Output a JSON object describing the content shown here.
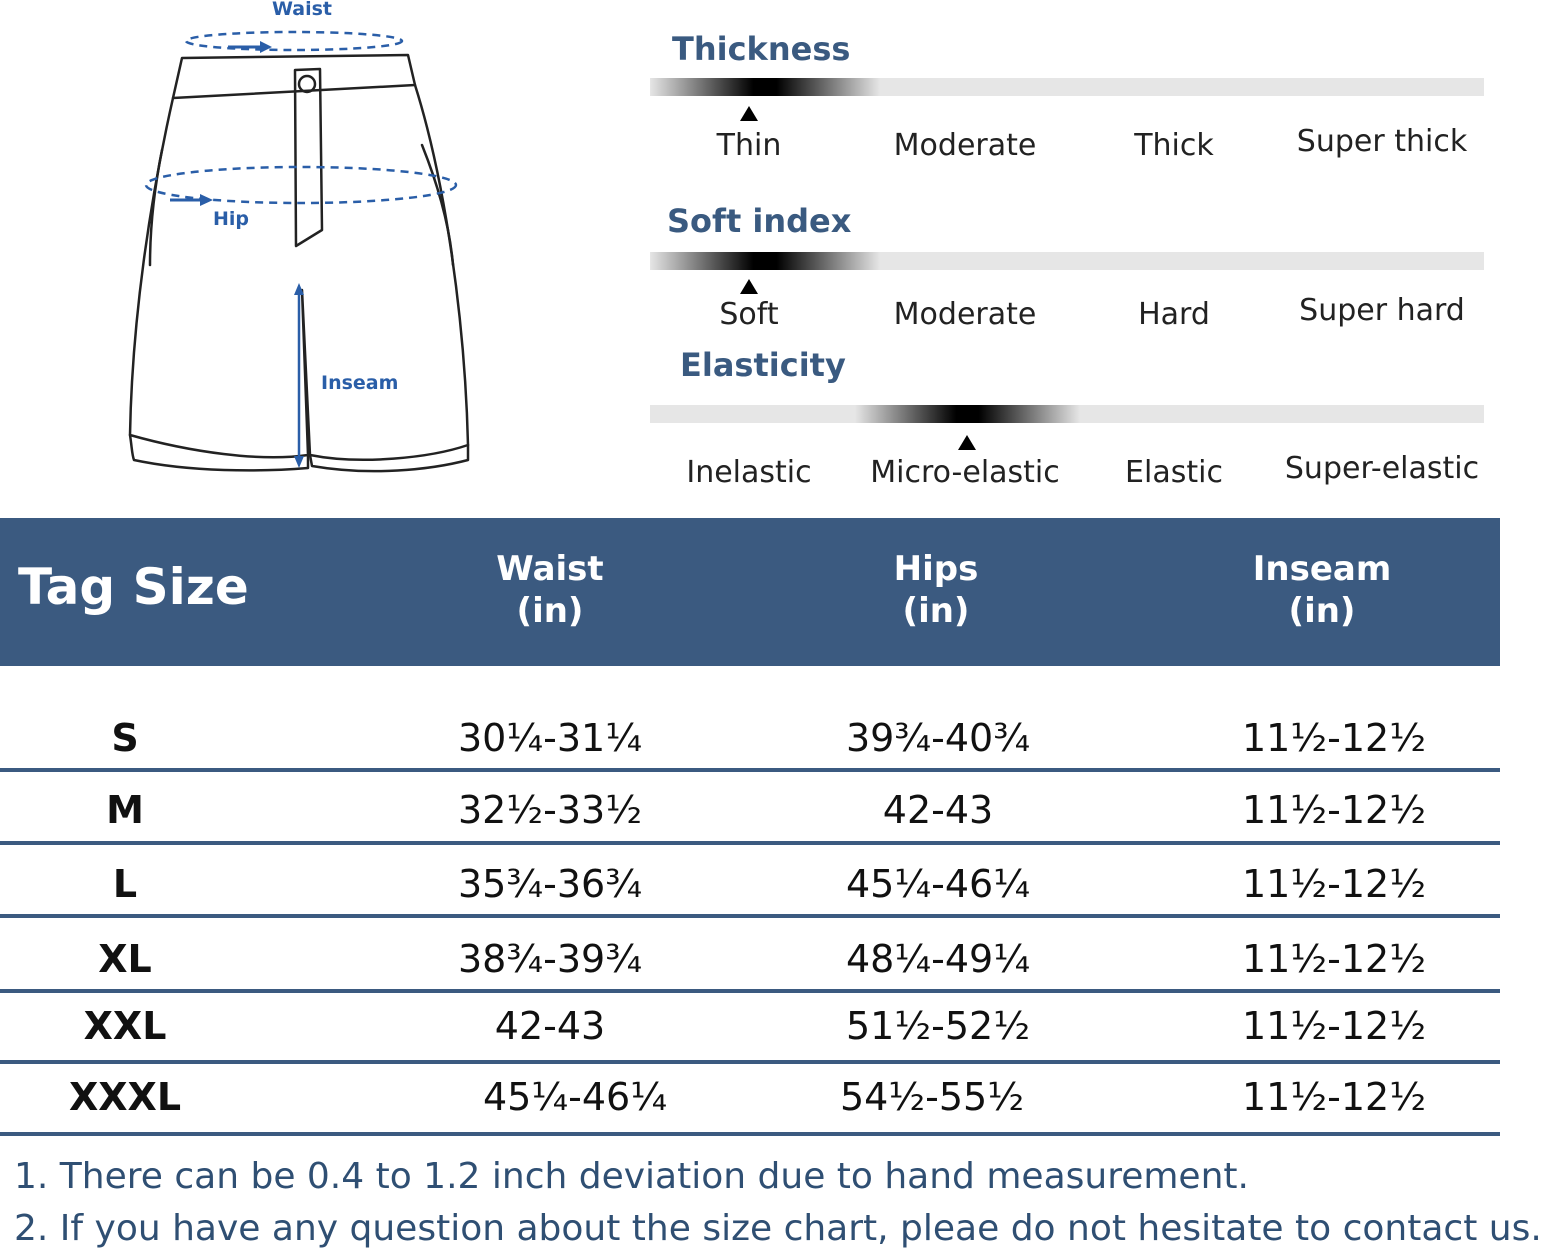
{
  "diagram": {
    "waist_label": "Waist",
    "hip_label": "Hip",
    "inseam_label": "Inseam"
  },
  "fabric_scales": [
    {
      "title": "Thickness",
      "levels": [
        "Thin",
        "Moderate",
        "Thick",
        "Super thick"
      ],
      "selected": "Thin"
    },
    {
      "title": "Soft index",
      "levels": [
        "Soft",
        "Moderate",
        "Hard",
        "Super hard"
      ],
      "selected": "Soft"
    },
    {
      "title": "Elasticity",
      "levels": [
        "Inelastic",
        "Micro-elastic",
        "Elastic",
        "Super-elastic"
      ],
      "selected": "Micro-elastic"
    }
  ],
  "size_table": {
    "headers": {
      "tag_size": "Tag Size",
      "waist": "Waist",
      "waist_unit": "(in)",
      "hips": "Hips",
      "hips_unit": "(in)",
      "inseam": "Inseam",
      "inseam_unit": "(in)"
    },
    "rows": [
      {
        "size": "S",
        "waist": "30¼-31¼",
        "hips": "39¾-40¾",
        "inseam": "11½-12½"
      },
      {
        "size": "M",
        "waist": "32½-33½",
        "hips": "42-43",
        "inseam": "11½-12½"
      },
      {
        "size": "L",
        "waist": "35¾-36¾",
        "hips": "45¼-46¼",
        "inseam": "11½-12½"
      },
      {
        "size": "XL",
        "waist": "38¾-39¾",
        "hips": "48¼-49¼",
        "inseam": "11½-12½"
      },
      {
        "size": "XXL",
        "waist": "42-43",
        "hips": "51½-52½",
        "inseam": "11½-12½"
      },
      {
        "size": "XXXL",
        "waist": "45¼-46¼",
        "hips": "54½-55½",
        "inseam": "11½-12½"
      }
    ]
  },
  "notes": [
    "1. There can be 0.4 to 1.2 inch deviation due to hand measurement.",
    "2. If you have any question about the size chart, pleae do not hesitate to contact us."
  ],
  "colors": {
    "header_bg": "#3b5a80",
    "title_text": "#3a5a80",
    "measure_blue": "#2a5ea8"
  }
}
